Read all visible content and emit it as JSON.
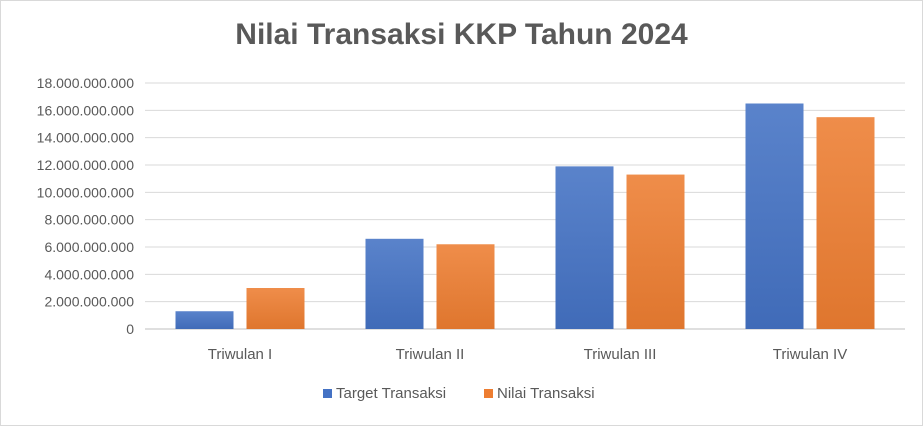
{
  "chart_data": {
    "type": "bar",
    "title": "Nilai Transaksi KKP Tahun 2024",
    "categories": [
      "Triwulan I",
      "Triwulan II",
      "Triwulan III",
      "Triwulan IV"
    ],
    "series": [
      {
        "name": "Target Transaksi",
        "values": [
          1300000000,
          6600000000,
          11900000000,
          16500000000
        ],
        "color": "#4472c4"
      },
      {
        "name": "Nilai Transaksi",
        "values": [
          3000000000,
          6200000000,
          11300000000,
          15500000000
        ],
        "color": "#ed7d31"
      }
    ],
    "ylim": [
      0,
      18000000000
    ],
    "yticks": [
      0,
      2000000000,
      4000000000,
      6000000000,
      8000000000,
      10000000000,
      12000000000,
      14000000000,
      16000000000,
      18000000000
    ],
    "ytick_labels": [
      "0",
      "2.000.000.000",
      "4.000.000.000",
      "6.000.000.000",
      "8.000.000.000",
      "10.000.000.000",
      "12.000.000.000",
      "14.000.000.000",
      "16.000.000.000",
      "18.000.000.000"
    ],
    "grid": true,
    "legend_position": "bottom"
  }
}
